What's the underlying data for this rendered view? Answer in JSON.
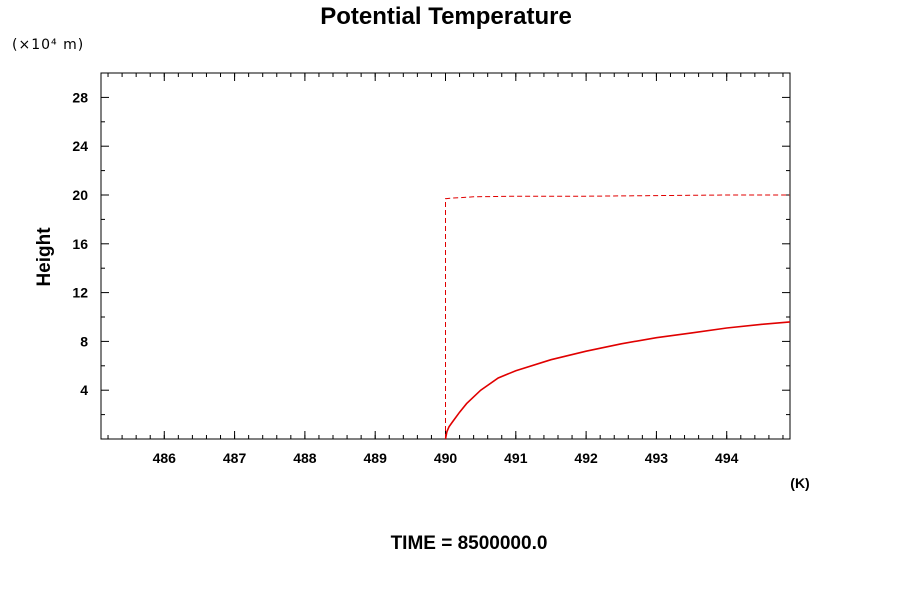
{
  "chart_data": {
    "type": "line",
    "title": "Potential Temperature",
    "xlabel": "(K)",
    "ylabel": "Height",
    "yunit": "(×10⁴ m)",
    "footer": "TIME = 8500000.0",
    "xlim": [
      485.1,
      494.9
    ],
    "ylim": [
      0,
      30
    ],
    "xticks": [
      486,
      487,
      488,
      489,
      490,
      491,
      492,
      493,
      494
    ],
    "yticks": [
      4,
      8,
      12,
      16,
      20,
      24,
      28
    ],
    "grid": false,
    "colors": {
      "series": "#e00000",
      "axis": "#000000"
    },
    "series": [
      {
        "style": "solid",
        "x": [
          490.0,
          490.02,
          490.05,
          490.1,
          490.2,
          490.3,
          490.5,
          490.75,
          491.0,
          491.5,
          492.0,
          492.5,
          493.0,
          493.5,
          494.0,
          494.5,
          494.9
        ],
        "y": [
          0.0,
          0.6,
          1.0,
          1.4,
          2.2,
          2.9,
          4.0,
          5.0,
          5.6,
          6.5,
          7.2,
          7.8,
          8.3,
          8.7,
          9.1,
          9.4,
          9.6
        ]
      },
      {
        "style": "dashed",
        "x": [
          490.0,
          490.0,
          490.1,
          490.4,
          491.0,
          492.0,
          493.0,
          494.0,
          494.9
        ],
        "y": [
          0.0,
          19.7,
          19.75,
          19.85,
          19.9,
          19.9,
          19.95,
          20.0,
          20.0
        ]
      }
    ]
  }
}
